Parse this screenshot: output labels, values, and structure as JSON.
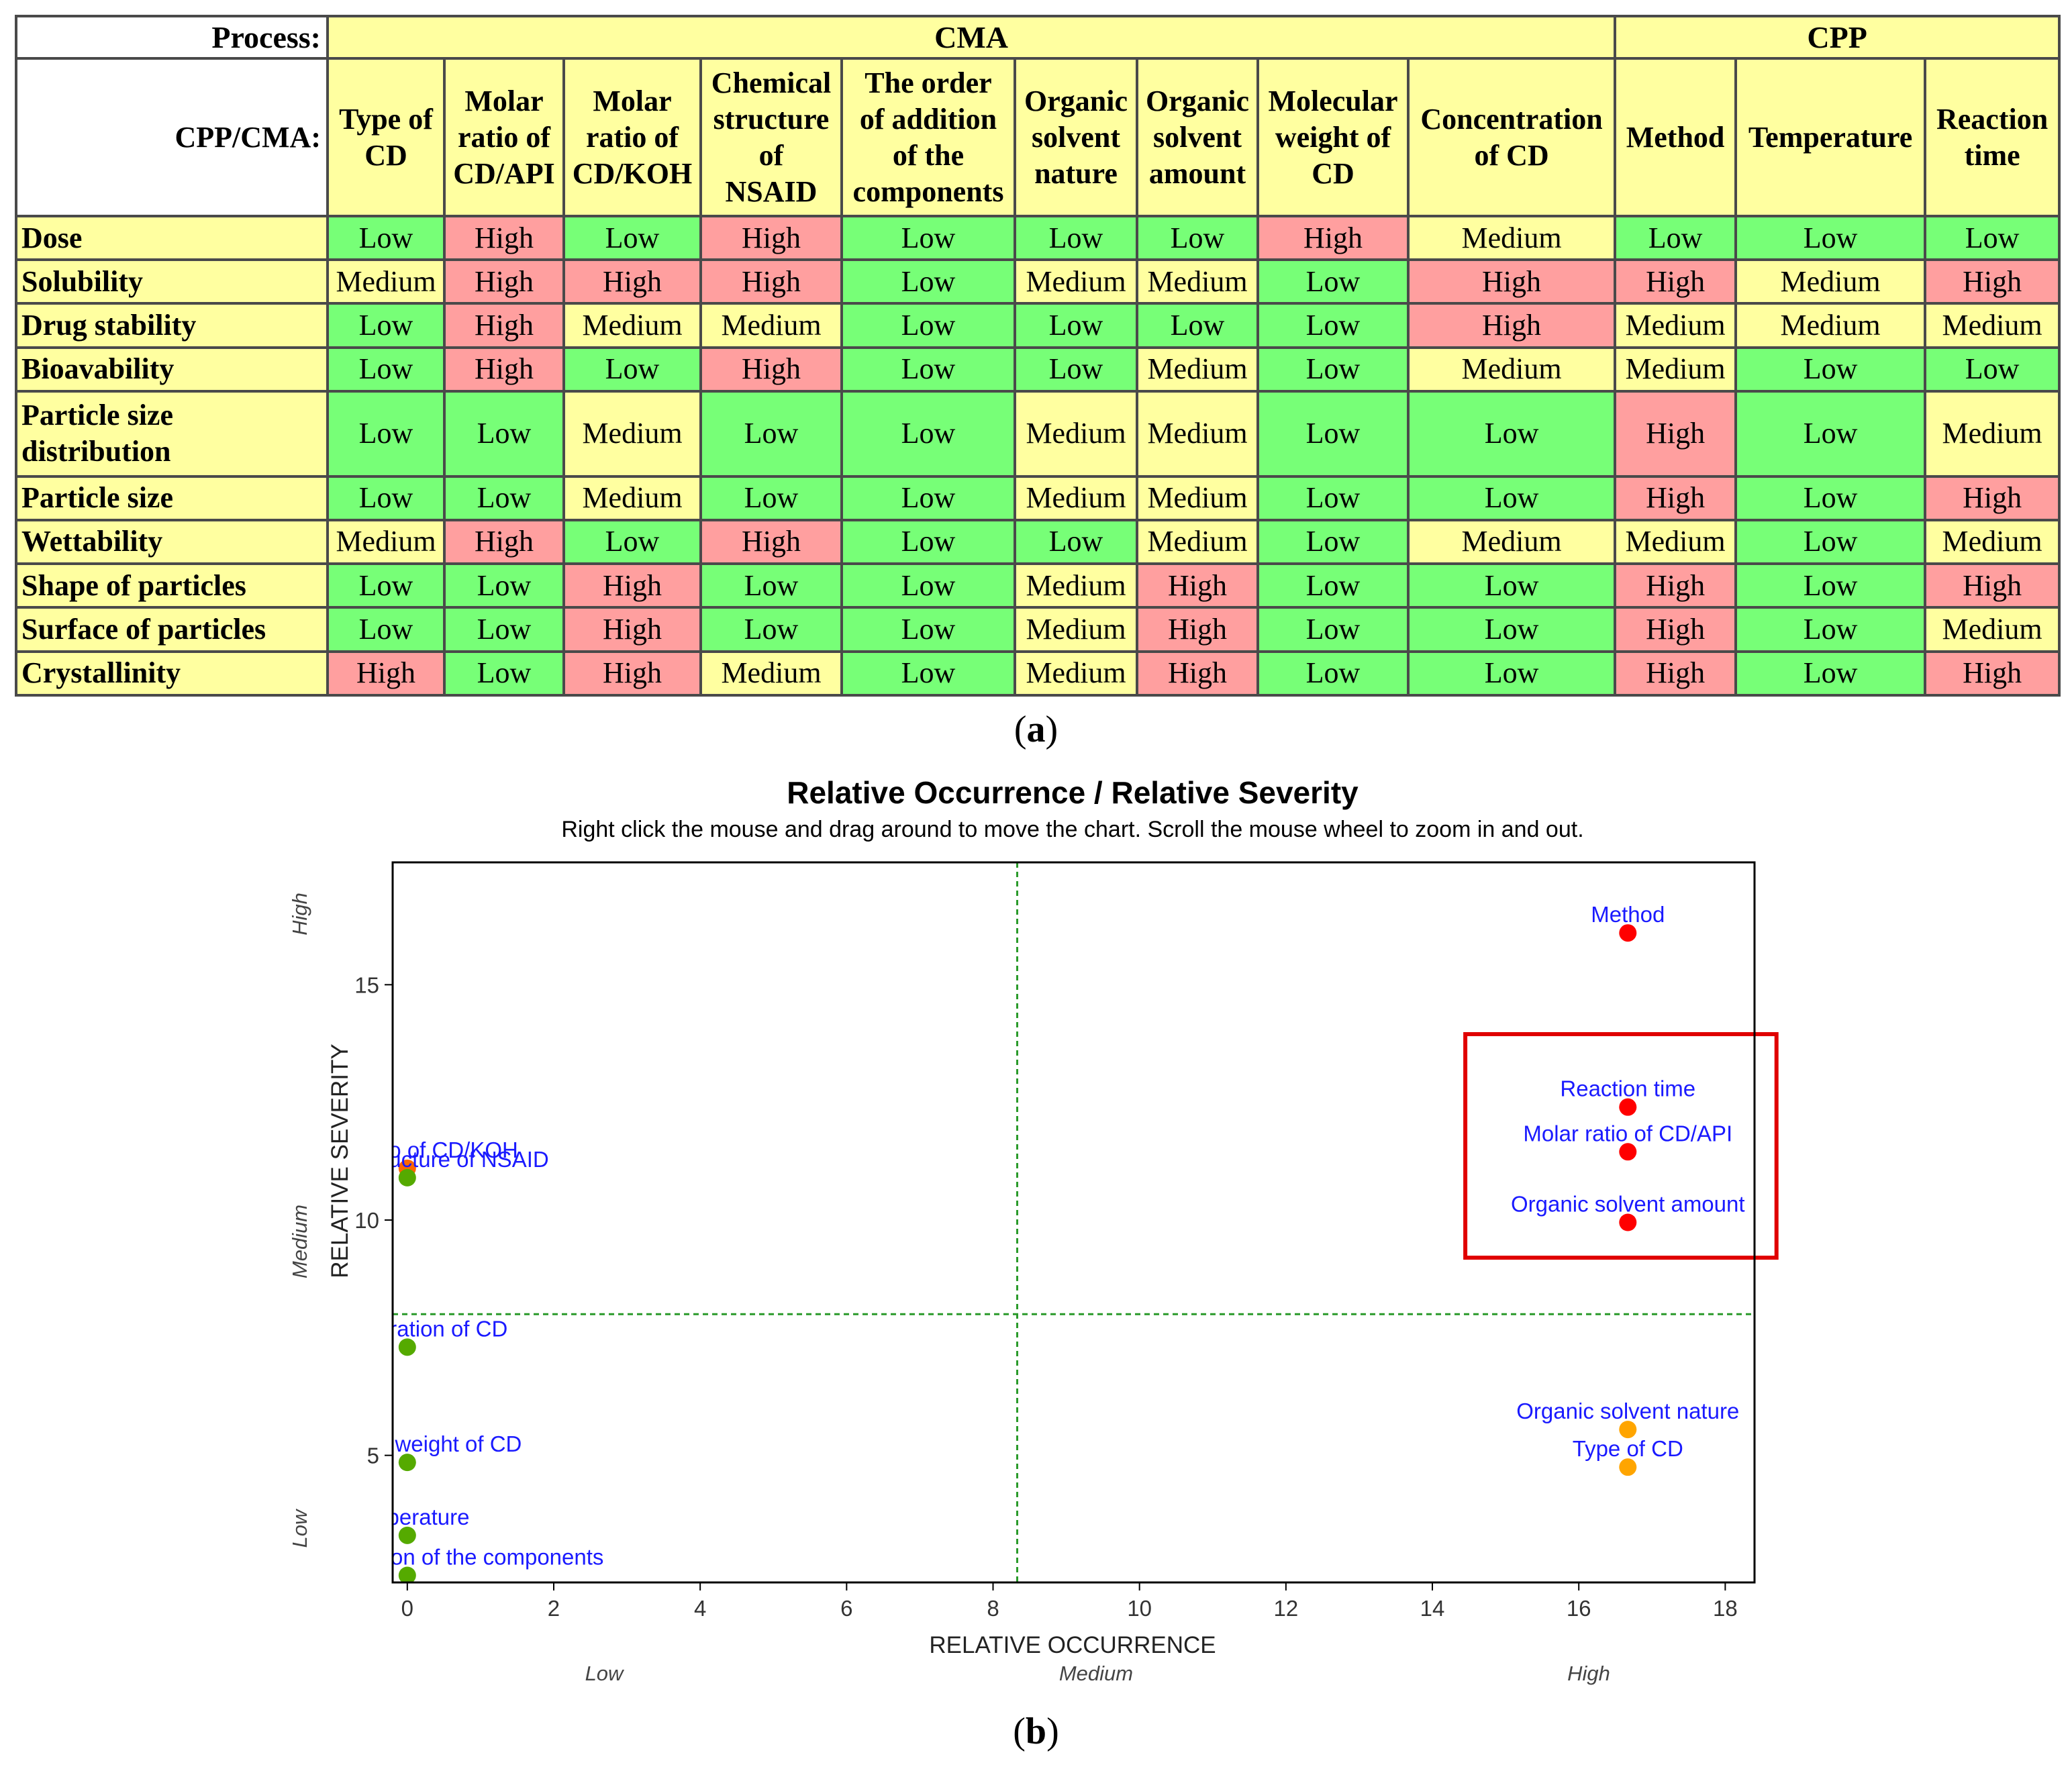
{
  "table": {
    "process_label": "Process:",
    "cpp_cma_label": "CPP/CMA:",
    "groups": [
      {
        "label": "CMA",
        "span": 9
      },
      {
        "label": "CPP",
        "span": 3
      }
    ],
    "columns": [
      [
        "Type of",
        "CD"
      ],
      [
        "Molar",
        "ratio of",
        "CD/API"
      ],
      [
        "Molar",
        "ratio of",
        "CD/KOH"
      ],
      [
        "Chemical",
        "structure",
        "of",
        "NSAID"
      ],
      [
        "The order",
        "of addition",
        "of the",
        "components"
      ],
      [
        "Organic",
        "solvent",
        "nature"
      ],
      [
        "Organic",
        "solvent",
        "amount"
      ],
      [
        "Molecular",
        "weight of",
        "CD"
      ],
      [
        "Concentration",
        "of CD"
      ],
      [
        "Method"
      ],
      [
        "Temperature"
      ],
      [
        "Reaction",
        "time"
      ]
    ],
    "rows": [
      {
        "label": [
          "Dose"
        ],
        "values": [
          "Low",
          "High",
          "Low",
          "High",
          "Low",
          "Low",
          "Low",
          "High",
          "Medium",
          "Low",
          "Low",
          "Low"
        ]
      },
      {
        "label": [
          "Solubility"
        ],
        "values": [
          "Medium",
          "High",
          "High",
          "High",
          "Low",
          "Medium",
          "Medium",
          "Low",
          "High",
          "High",
          "Medium",
          "High"
        ]
      },
      {
        "label": [
          "Drug stability"
        ],
        "values": [
          "Low",
          "High",
          "Medium",
          "Medium",
          "Low",
          "Low",
          "Low",
          "Low",
          "High",
          "Medium",
          "Medium",
          "Medium"
        ]
      },
      {
        "label": [
          "Bioavability"
        ],
        "values": [
          "Low",
          "High",
          "Low",
          "High",
          "Low",
          "Low",
          "Medium",
          "Low",
          "Medium",
          "Medium",
          "Low",
          "Low"
        ]
      },
      {
        "label": [
          "Particle size",
          "distribution"
        ],
        "values": [
          "Low",
          "Low",
          "Medium",
          "Low",
          "Low",
          "Medium",
          "Medium",
          "Low",
          "Low",
          "High",
          "Low",
          "Medium"
        ]
      },
      {
        "label": [
          "Particle size"
        ],
        "values": [
          "Low",
          "Low",
          "Medium",
          "Low",
          "Low",
          "Medium",
          "Medium",
          "Low",
          "Low",
          "High",
          "Low",
          "High"
        ]
      },
      {
        "label": [
          "Wettability"
        ],
        "values": [
          "Medium",
          "High",
          "Low",
          "High",
          "Low",
          "Low",
          "Medium",
          "Low",
          "Medium",
          "Medium",
          "Low",
          "Medium"
        ]
      },
      {
        "label": [
          "Shape of particles"
        ],
        "values": [
          "Low",
          "Low",
          "High",
          "Low",
          "Low",
          "Medium",
          "High",
          "Low",
          "Low",
          "High",
          "Low",
          "High"
        ]
      },
      {
        "label": [
          "Surface of particles"
        ],
        "values": [
          "Low",
          "Low",
          "High",
          "Low",
          "Low",
          "Medium",
          "High",
          "Low",
          "Low",
          "High",
          "Low",
          "Medium"
        ]
      },
      {
        "label": [
          "Crystallinity"
        ],
        "values": [
          "High",
          "Low",
          "High",
          "Medium",
          "Low",
          "Medium",
          "High",
          "Low",
          "Low",
          "High",
          "Low",
          "High"
        ]
      }
    ],
    "colors": {
      "Low": "#77ff77",
      "Medium": "#ffffa0",
      "High": "#ff9f9f",
      "header": "#ffffa0"
    }
  },
  "captions": {
    "a": "a",
    "b": "b"
  },
  "chart_data": {
    "type": "scatter",
    "title": "Relative Occurrence / Relative Severity",
    "subtitle": "Right click the mouse and drag around to move the chart.  Scroll the mouse wheel to zoom in and out.",
    "xlabel": "RELATIVE OCCURRENCE",
    "ylabel": "RELATIVE SEVERITY",
    "xlim": [
      -0.2,
      18.4
    ],
    "ylim": [
      2.3,
      17.6
    ],
    "xticks": [
      0,
      2,
      4,
      6,
      8,
      10,
      12,
      14,
      16,
      18
    ],
    "yticks": [
      5,
      10,
      15
    ],
    "x_zone_labels": [
      "Low",
      "Medium",
      "High"
    ],
    "y_zone_labels": [
      "Low",
      "Medium",
      "High"
    ],
    "threshold_x": 8.33,
    "threshold_y": 8.0,
    "points": [
      {
        "label": "Method",
        "x": 16.67,
        "y": 16.1,
        "color": "#ff0000"
      },
      {
        "label": "Reaction time",
        "x": 16.67,
        "y": 12.4,
        "color": "#ff0000"
      },
      {
        "label": "Molar ratio of CD/API",
        "x": 16.67,
        "y": 11.45,
        "color": "#ff0000"
      },
      {
        "label": "Organic solvent amount",
        "x": 16.67,
        "y": 9.95,
        "color": "#ff0000"
      },
      {
        "label": "Organic solvent nature",
        "x": 16.67,
        "y": 5.55,
        "color": "#ffa500"
      },
      {
        "label": "Type of CD",
        "x": 16.67,
        "y": 4.75,
        "color": "#ffa500"
      },
      {
        "label": "Molar ratio of CD/KOH",
        "x": 0,
        "y": 11.1,
        "color": "#ff6600"
      },
      {
        "label": "Chemical structure of NSAID",
        "x": 0,
        "y": 10.9,
        "color": "#55aa00"
      },
      {
        "label": "Concentration of CD",
        "x": 0,
        "y": 7.3,
        "color": "#55aa00"
      },
      {
        "label": "Molecular weight of CD",
        "x": 0,
        "y": 4.85,
        "color": "#55aa00"
      },
      {
        "label": "Temperature",
        "x": 0,
        "y": 3.3,
        "color": "#55aa00"
      },
      {
        "label": "The order of addition of the components",
        "x": 0,
        "y": 2.45,
        "color": "#55aa00"
      }
    ],
    "highlight_box": {
      "x": [
        14.45,
        18.7
      ],
      "y": [
        9.2,
        13.95
      ],
      "color": "#e00000"
    },
    "grid": false,
    "colors": {
      "label": "#1a1aff",
      "threshold": "#2a9a2a",
      "axis": "#000000"
    }
  }
}
